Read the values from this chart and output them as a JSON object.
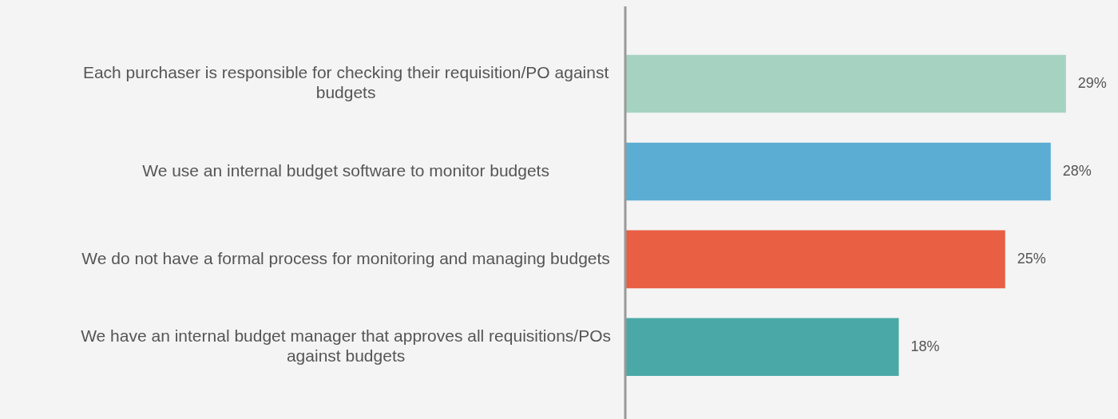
{
  "chart_data": {
    "type": "bar",
    "orientation": "horizontal",
    "categories": [
      "Each purchaser is responsible for checking their requisition/PO against budgets",
      "We use an internal budget software to monitor budgets",
      "We do not have a formal process for monitoring and managing budgets",
      "We have an internal budget manager that approves all requisitions/POs against budgets"
    ],
    "values": [
      29,
      28,
      25,
      18
    ],
    "colors": [
      "#a6d2c1",
      "#5badd3",
      "#e85f44",
      "#4aa9a6"
    ],
    "value_labels": [
      "29%",
      "28%",
      "25%",
      "18%"
    ],
    "legend": false
  }
}
